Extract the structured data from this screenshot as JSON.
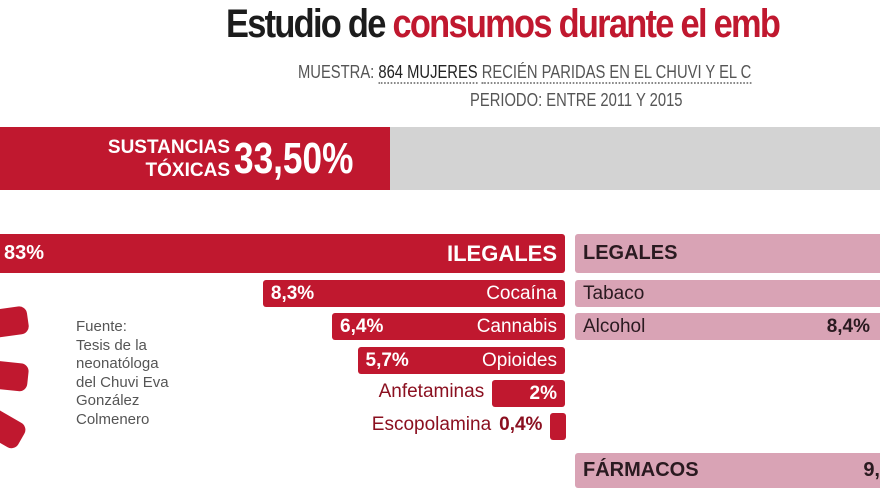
{
  "title": {
    "part1": "Estudio de",
    "part2": "consumos durante el emb"
  },
  "subtitle": {
    "muestra_label": "MUESTRA:",
    "muestra_value": "864 MUJERES",
    "muestra_rest": "RECIÉN PARIDAS EN EL CHUVI Y EL C",
    "periodo": "PERIODO: ENTRE 2011 Y 2015"
  },
  "banner": {
    "label_line1": "SUSTANCIAS",
    "label_line2": "TÓXICAS",
    "value": "33,50%"
  },
  "source": [
    "Fuente:",
    "Tesis de la",
    "neonatóloga",
    "del Chuvi Eva",
    "González",
    "Colmenero"
  ],
  "colors": {
    "red": "#c0182f",
    "pink": "#d9a3b5",
    "gray": "#d3d3d3"
  },
  "chart_data": {
    "type": "bar",
    "title": "Estudio de consumos durante el embarazo",
    "total": {
      "label": "SUSTANCIAS TÓXICAS",
      "value": 33.5,
      "display": "33,50%"
    },
    "ilegales": {
      "header": {
        "label": "ILEGALES",
        "display": "83%"
      },
      "categories": [
        "Cocaína",
        "Cannabis",
        "Opioides",
        "Anfetaminas",
        "Escopolamina"
      ],
      "values": [
        8.3,
        6.4,
        5.7,
        2,
        0.4
      ],
      "displays": [
        "8,3%",
        "6,4%",
        "5,7%",
        "2%",
        "0,4%"
      ]
    },
    "legales": {
      "header": {
        "label": "LEGALES"
      },
      "categories": [
        "Tabaco",
        "Alcohol"
      ],
      "displays": [
        "",
        "8,4%"
      ]
    },
    "farmacos": {
      "label": "FÁRMACOS",
      "display": "9,"
    }
  }
}
